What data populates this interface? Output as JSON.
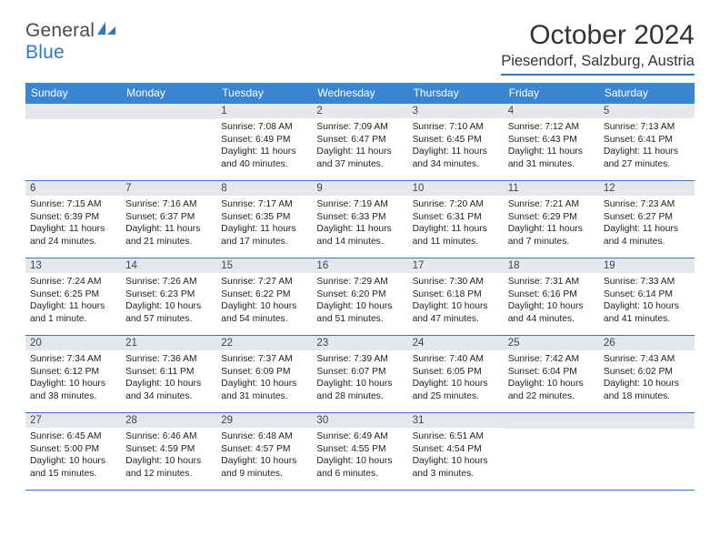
{
  "logo": {
    "word1": "General",
    "word2": "Blue"
  },
  "title": {
    "month": "October 2024",
    "location": "Piesendorf, Salzburg, Austria"
  },
  "colors": {
    "primary": "#3a85d0",
    "rule": "#2f78c4",
    "daynum_bg": "#e4e8ec",
    "text": "#222222"
  },
  "weekdays": [
    "Sunday",
    "Monday",
    "Tuesday",
    "Wednesday",
    "Thursday",
    "Friday",
    "Saturday"
  ],
  "blanks_before": 2,
  "days": [
    {
      "n": "1",
      "sr": "Sunrise: 7:08 AM",
      "ss": "Sunset: 6:49 PM",
      "dl1": "Daylight: 11 hours",
      "dl2": "and 40 minutes."
    },
    {
      "n": "2",
      "sr": "Sunrise: 7:09 AM",
      "ss": "Sunset: 6:47 PM",
      "dl1": "Daylight: 11 hours",
      "dl2": "and 37 minutes."
    },
    {
      "n": "3",
      "sr": "Sunrise: 7:10 AM",
      "ss": "Sunset: 6:45 PM",
      "dl1": "Daylight: 11 hours",
      "dl2": "and 34 minutes."
    },
    {
      "n": "4",
      "sr": "Sunrise: 7:12 AM",
      "ss": "Sunset: 6:43 PM",
      "dl1": "Daylight: 11 hours",
      "dl2": "and 31 minutes."
    },
    {
      "n": "5",
      "sr": "Sunrise: 7:13 AM",
      "ss": "Sunset: 6:41 PM",
      "dl1": "Daylight: 11 hours",
      "dl2": "and 27 minutes."
    },
    {
      "n": "6",
      "sr": "Sunrise: 7:15 AM",
      "ss": "Sunset: 6:39 PM",
      "dl1": "Daylight: 11 hours",
      "dl2": "and 24 minutes."
    },
    {
      "n": "7",
      "sr": "Sunrise: 7:16 AM",
      "ss": "Sunset: 6:37 PM",
      "dl1": "Daylight: 11 hours",
      "dl2": "and 21 minutes."
    },
    {
      "n": "8",
      "sr": "Sunrise: 7:17 AM",
      "ss": "Sunset: 6:35 PM",
      "dl1": "Daylight: 11 hours",
      "dl2": "and 17 minutes."
    },
    {
      "n": "9",
      "sr": "Sunrise: 7:19 AM",
      "ss": "Sunset: 6:33 PM",
      "dl1": "Daylight: 11 hours",
      "dl2": "and 14 minutes."
    },
    {
      "n": "10",
      "sr": "Sunrise: 7:20 AM",
      "ss": "Sunset: 6:31 PM",
      "dl1": "Daylight: 11 hours",
      "dl2": "and 11 minutes."
    },
    {
      "n": "11",
      "sr": "Sunrise: 7:21 AM",
      "ss": "Sunset: 6:29 PM",
      "dl1": "Daylight: 11 hours",
      "dl2": "and 7 minutes."
    },
    {
      "n": "12",
      "sr": "Sunrise: 7:23 AM",
      "ss": "Sunset: 6:27 PM",
      "dl1": "Daylight: 11 hours",
      "dl2": "and 4 minutes."
    },
    {
      "n": "13",
      "sr": "Sunrise: 7:24 AM",
      "ss": "Sunset: 6:25 PM",
      "dl1": "Daylight: 11 hours",
      "dl2": "and 1 minute."
    },
    {
      "n": "14",
      "sr": "Sunrise: 7:26 AM",
      "ss": "Sunset: 6:23 PM",
      "dl1": "Daylight: 10 hours",
      "dl2": "and 57 minutes."
    },
    {
      "n": "15",
      "sr": "Sunrise: 7:27 AM",
      "ss": "Sunset: 6:22 PM",
      "dl1": "Daylight: 10 hours",
      "dl2": "and 54 minutes."
    },
    {
      "n": "16",
      "sr": "Sunrise: 7:29 AM",
      "ss": "Sunset: 6:20 PM",
      "dl1": "Daylight: 10 hours",
      "dl2": "and 51 minutes."
    },
    {
      "n": "17",
      "sr": "Sunrise: 7:30 AM",
      "ss": "Sunset: 6:18 PM",
      "dl1": "Daylight: 10 hours",
      "dl2": "and 47 minutes."
    },
    {
      "n": "18",
      "sr": "Sunrise: 7:31 AM",
      "ss": "Sunset: 6:16 PM",
      "dl1": "Daylight: 10 hours",
      "dl2": "and 44 minutes."
    },
    {
      "n": "19",
      "sr": "Sunrise: 7:33 AM",
      "ss": "Sunset: 6:14 PM",
      "dl1": "Daylight: 10 hours",
      "dl2": "and 41 minutes."
    },
    {
      "n": "20",
      "sr": "Sunrise: 7:34 AM",
      "ss": "Sunset: 6:12 PM",
      "dl1": "Daylight: 10 hours",
      "dl2": "and 38 minutes."
    },
    {
      "n": "21",
      "sr": "Sunrise: 7:36 AM",
      "ss": "Sunset: 6:11 PM",
      "dl1": "Daylight: 10 hours",
      "dl2": "and 34 minutes."
    },
    {
      "n": "22",
      "sr": "Sunrise: 7:37 AM",
      "ss": "Sunset: 6:09 PM",
      "dl1": "Daylight: 10 hours",
      "dl2": "and 31 minutes."
    },
    {
      "n": "23",
      "sr": "Sunrise: 7:39 AM",
      "ss": "Sunset: 6:07 PM",
      "dl1": "Daylight: 10 hours",
      "dl2": "and 28 minutes."
    },
    {
      "n": "24",
      "sr": "Sunrise: 7:40 AM",
      "ss": "Sunset: 6:05 PM",
      "dl1": "Daylight: 10 hours",
      "dl2": "and 25 minutes."
    },
    {
      "n": "25",
      "sr": "Sunrise: 7:42 AM",
      "ss": "Sunset: 6:04 PM",
      "dl1": "Daylight: 10 hours",
      "dl2": "and 22 minutes."
    },
    {
      "n": "26",
      "sr": "Sunrise: 7:43 AM",
      "ss": "Sunset: 6:02 PM",
      "dl1": "Daylight: 10 hours",
      "dl2": "and 18 minutes."
    },
    {
      "n": "27",
      "sr": "Sunrise: 6:45 AM",
      "ss": "Sunset: 5:00 PM",
      "dl1": "Daylight: 10 hours",
      "dl2": "and 15 minutes."
    },
    {
      "n": "28",
      "sr": "Sunrise: 6:46 AM",
      "ss": "Sunset: 4:59 PM",
      "dl1": "Daylight: 10 hours",
      "dl2": "and 12 minutes."
    },
    {
      "n": "29",
      "sr": "Sunrise: 6:48 AM",
      "ss": "Sunset: 4:57 PM",
      "dl1": "Daylight: 10 hours",
      "dl2": "and 9 minutes."
    },
    {
      "n": "30",
      "sr": "Sunrise: 6:49 AM",
      "ss": "Sunset: 4:55 PM",
      "dl1": "Daylight: 10 hours",
      "dl2": "and 6 minutes."
    },
    {
      "n": "31",
      "sr": "Sunrise: 6:51 AM",
      "ss": "Sunset: 4:54 PM",
      "dl1": "Daylight: 10 hours",
      "dl2": "and 3 minutes."
    }
  ]
}
